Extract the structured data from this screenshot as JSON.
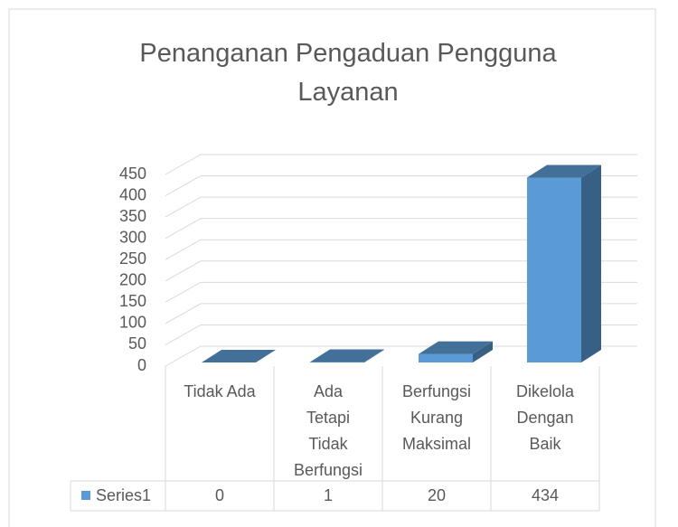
{
  "chart_data": {
    "type": "bar3d",
    "title": "Penanganan Pengaduan Pengguna Layanan",
    "categories": [
      "Tidak Ada",
      "Ada Tetapi Tidak Berfungsi",
      "Berfungsi Kurang Maksimal",
      "Dikelola Dengan Baik"
    ],
    "series": [
      {
        "name": "Series1",
        "color": "#5b9bd5",
        "values": [
          0,
          1,
          20,
          434
        ]
      }
    ],
    "ylim": [
      0,
      450
    ],
    "yticks": [
      0,
      50,
      100,
      150,
      200,
      250,
      300,
      350,
      400,
      450
    ],
    "grid": true,
    "data_table": true
  }
}
